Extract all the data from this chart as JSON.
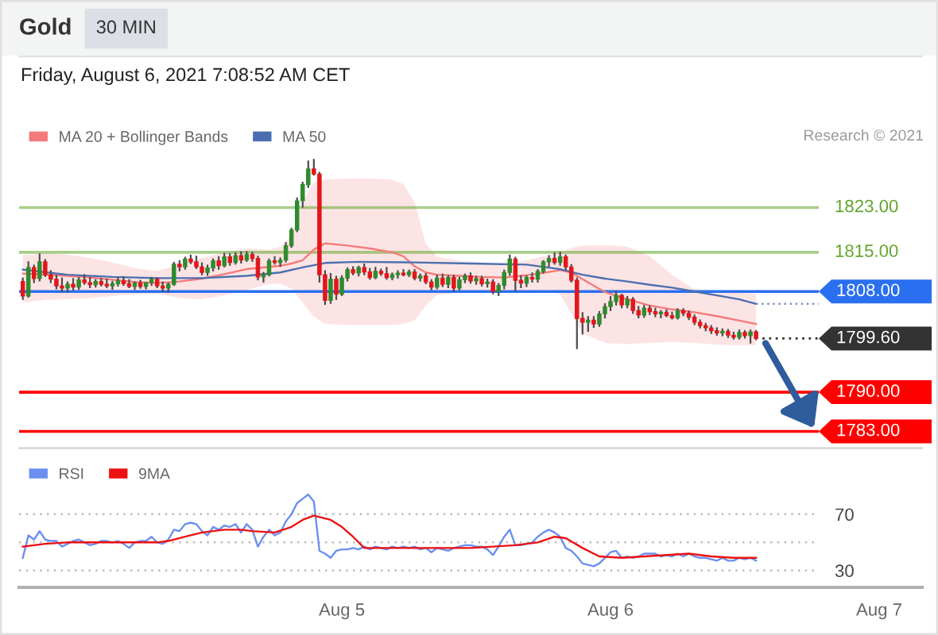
{
  "chart_data": [
    {
      "type": "candlestick",
      "title": "Gold",
      "subtitle": "Friday, August 6, 2021 7:08:52 AM CET",
      "annotations": [
        "30 MIN",
        "Research © 2021"
      ],
      "x": [
        "2021-08-03T19:30",
        "2021-08-03T20:00",
        "2021-08-03T20:30",
        "2021-08-03T21:00",
        "2021-08-03T21:30",
        "2021-08-03T22:00",
        "2021-08-03T22:30",
        "2021-08-03T23:00",
        "2021-08-03T23:30",
        "2021-08-04T00:00",
        "2021-08-04T00:30",
        "2021-08-04T01:00",
        "2021-08-04T01:30",
        "2021-08-04T02:00",
        "2021-08-04T02:30",
        "2021-08-04T03:00",
        "2021-08-04T03:30",
        "2021-08-04T04:00",
        "2021-08-04T04:30",
        "2021-08-04T05:00",
        "2021-08-04T05:30",
        "2021-08-04T06:00",
        "2021-08-04T06:30",
        "2021-08-04T07:00",
        "2021-08-04T07:30",
        "2021-08-04T08:00",
        "2021-08-04T08:30",
        "2021-08-04T09:00",
        "2021-08-04T09:30",
        "2021-08-04T10:00",
        "2021-08-04T10:30",
        "2021-08-04T11:00",
        "2021-08-04T11:30",
        "2021-08-04T12:00",
        "2021-08-04T12:30",
        "2021-08-04T13:00",
        "2021-08-04T13:30",
        "2021-08-04T14:00",
        "2021-08-04T14:30",
        "2021-08-04T15:00",
        "2021-08-04T15:30",
        "2021-08-04T16:00",
        "2021-08-04T16:30",
        "2021-08-04T17:00",
        "2021-08-04T17:30",
        "2021-08-04T18:00",
        "2021-08-04T18:30",
        "2021-08-04T19:00",
        "2021-08-04T19:30",
        "2021-08-04T20:00",
        "2021-08-04T20:30",
        "2021-08-04T21:00",
        "2021-08-04T21:30",
        "2021-08-04T22:00",
        "2021-08-04T22:30",
        "2021-08-04T23:00",
        "2021-08-04T23:30",
        "2021-08-05T00:00",
        "2021-08-05T00:30",
        "2021-08-05T01:00",
        "2021-08-05T01:30",
        "2021-08-05T02:00",
        "2021-08-05T02:30",
        "2021-08-05T03:00",
        "2021-08-05T03:30",
        "2021-08-05T04:00",
        "2021-08-05T04:30",
        "2021-08-05T05:00",
        "2021-08-05T05:30",
        "2021-08-05T06:00",
        "2021-08-05T06:30",
        "2021-08-05T07:00",
        "2021-08-05T07:30",
        "2021-08-05T08:00",
        "2021-08-05T08:30",
        "2021-08-05T09:00",
        "2021-08-05T09:30",
        "2021-08-05T10:00",
        "2021-08-05T10:30",
        "2021-08-05T11:00",
        "2021-08-05T11:30",
        "2021-08-05T12:00",
        "2021-08-05T12:30",
        "2021-08-05T13:00",
        "2021-08-05T13:30",
        "2021-08-05T14:00",
        "2021-08-05T14:30",
        "2021-08-05T15:00",
        "2021-08-05T15:30",
        "2021-08-05T16:00",
        "2021-08-05T16:30",
        "2021-08-05T17:00",
        "2021-08-05T17:30",
        "2021-08-05T18:00",
        "2021-08-05T18:30",
        "2021-08-05T19:00",
        "2021-08-05T19:30",
        "2021-08-05T20:00",
        "2021-08-05T20:30",
        "2021-08-05T21:00",
        "2021-08-05T21:30",
        "2021-08-05T22:00",
        "2021-08-05T22:30",
        "2021-08-05T23:00",
        "2021-08-05T23:30",
        "2021-08-06T00:00",
        "2021-08-06T00:30",
        "2021-08-06T01:00",
        "2021-08-06T01:30",
        "2021-08-06T02:00",
        "2021-08-06T02:30",
        "2021-08-06T03:00",
        "2021-08-06T03:30",
        "2021-08-06T04:00",
        "2021-08-06T04:30",
        "2021-08-06T05:00",
        "2021-08-06T05:30",
        "2021-08-06T06:00",
        "2021-08-06T06:30",
        "2021-08-06T07:00",
        "2021-08-06T07:30",
        "2021-08-06T08:00",
        "2021-08-06T08:30",
        "2021-08-06T09:00",
        "2021-08-06T09:30",
        "2021-08-06T10:00",
        "2021-08-06T10:30",
        "2021-08-06T11:00",
        "2021-08-06T11:30",
        "2021-08-06T12:00",
        "2021-08-06T12:30",
        "2021-08-06T13:00"
      ],
      "ohlc": [
        [
          1809.8,
          1810.5,
          1806.5,
          1807.2
        ],
        [
          1807.2,
          1813.4,
          1806.9,
          1812.3
        ],
        [
          1812.3,
          1812.8,
          1809.5,
          1810.3
        ],
        [
          1810.3,
          1814.8,
          1809.8,
          1813.3
        ],
        [
          1813.3,
          1813.8,
          1810.6,
          1811.0
        ],
        [
          1811.0,
          1811.8,
          1809.5,
          1810.2
        ],
        [
          1810.2,
          1811.0,
          1808.4,
          1809.0
        ],
        [
          1809.0,
          1810.5,
          1807.9,
          1808.6
        ],
        [
          1808.6,
          1809.8,
          1807.8,
          1809.3
        ],
        [
          1809.3,
          1810.4,
          1808.2,
          1808.8
        ],
        [
          1808.8,
          1810.6,
          1808.3,
          1810.1
        ],
        [
          1810.1,
          1811.1,
          1809.2,
          1809.6
        ],
        [
          1809.6,
          1810.6,
          1808.6,
          1809.2
        ],
        [
          1809.2,
          1810.2,
          1808.7,
          1809.8
        ],
        [
          1809.8,
          1810.4,
          1808.9,
          1809.3
        ],
        [
          1809.3,
          1810.3,
          1808.6,
          1809.0
        ],
        [
          1809.0,
          1809.9,
          1808.3,
          1809.4
        ],
        [
          1809.4,
          1810.5,
          1808.9,
          1809.9
        ],
        [
          1809.9,
          1810.7,
          1809.0,
          1809.4
        ],
        [
          1809.4,
          1810.2,
          1808.6,
          1808.9
        ],
        [
          1808.9,
          1809.8,
          1808.3,
          1809.5
        ],
        [
          1809.5,
          1810.1,
          1808.5,
          1808.9
        ],
        [
          1808.9,
          1809.7,
          1808.4,
          1809.6
        ],
        [
          1809.6,
          1810.6,
          1809.0,
          1810.2
        ],
        [
          1810.2,
          1810.5,
          1808.6,
          1809.0
        ],
        [
          1809.0,
          1809.8,
          1807.9,
          1808.6
        ],
        [
          1808.6,
          1809.6,
          1807.8,
          1809.3
        ],
        [
          1809.3,
          1813.3,
          1809.0,
          1812.9
        ],
        [
          1812.9,
          1813.6,
          1811.6,
          1812.4
        ],
        [
          1812.4,
          1814.2,
          1811.9,
          1813.8
        ],
        [
          1813.8,
          1814.6,
          1812.9,
          1813.3
        ],
        [
          1813.3,
          1814.4,
          1812.0,
          1812.4
        ],
        [
          1812.4,
          1813.2,
          1810.9,
          1811.4
        ],
        [
          1811.4,
          1812.8,
          1810.8,
          1812.2
        ],
        [
          1812.2,
          1813.9,
          1811.6,
          1813.5
        ],
        [
          1813.5,
          1814.3,
          1811.9,
          1812.6
        ],
        [
          1812.6,
          1814.9,
          1812.3,
          1814.2
        ],
        [
          1814.2,
          1814.8,
          1812.6,
          1813.2
        ],
        [
          1813.2,
          1815.0,
          1812.8,
          1814.4
        ],
        [
          1814.4,
          1815.2,
          1813.0,
          1813.6
        ],
        [
          1813.6,
          1815.2,
          1813.3,
          1814.6
        ],
        [
          1814.6,
          1815.1,
          1813.3,
          1813.9
        ],
        [
          1813.9,
          1814.4,
          1810.0,
          1810.6
        ],
        [
          1810.6,
          1811.5,
          1809.6,
          1811.0
        ],
        [
          1811.0,
          1813.9,
          1810.7,
          1813.5
        ],
        [
          1813.5,
          1814.3,
          1812.8,
          1813.2
        ],
        [
          1813.2,
          1814.1,
          1812.4,
          1813.6
        ],
        [
          1813.6,
          1816.8,
          1813.2,
          1816.2
        ],
        [
          1816.2,
          1819.4,
          1815.8,
          1819.0
        ],
        [
          1819.0,
          1824.8,
          1818.6,
          1824.2
        ],
        [
          1824.2,
          1827.6,
          1823.0,
          1827.1
        ],
        [
          1827.1,
          1831.4,
          1826.5,
          1829.9
        ],
        [
          1829.9,
          1831.7,
          1828.7,
          1829.0
        ],
        [
          1829.0,
          1829.4,
          1809.6,
          1811.0
        ],
        [
          1811.0,
          1811.8,
          1805.6,
          1806.4
        ],
        [
          1806.4,
          1811.3,
          1805.8,
          1810.2
        ],
        [
          1810.2,
          1810.8,
          1806.5,
          1807.5
        ],
        [
          1807.5,
          1810.9,
          1807.2,
          1810.4
        ],
        [
          1810.4,
          1812.3,
          1809.8,
          1811.9
        ],
        [
          1811.9,
          1812.5,
          1810.9,
          1811.3
        ],
        [
          1811.3,
          1812.6,
          1810.7,
          1812.3
        ],
        [
          1812.3,
          1813.0,
          1810.9,
          1811.5
        ],
        [
          1811.5,
          1812.2,
          1810.1,
          1810.5
        ],
        [
          1810.5,
          1812.4,
          1810.2,
          1811.6
        ],
        [
          1811.6,
          1812.1,
          1810.8,
          1811.2
        ],
        [
          1811.2,
          1812.4,
          1810.1,
          1810.5
        ],
        [
          1810.5,
          1811.4,
          1810.0,
          1811.0
        ],
        [
          1811.0,
          1811.8,
          1810.3,
          1811.3
        ],
        [
          1811.3,
          1812.0,
          1810.7,
          1811.0
        ],
        [
          1811.0,
          1811.9,
          1810.6,
          1811.5
        ],
        [
          1811.5,
          1812.0,
          1810.0,
          1810.4
        ],
        [
          1810.4,
          1811.2,
          1809.8,
          1810.8
        ],
        [
          1810.8,
          1811.3,
          1809.3,
          1809.7
        ],
        [
          1809.7,
          1810.2,
          1808.2,
          1808.8
        ],
        [
          1808.8,
          1811.0,
          1808.4,
          1810.4
        ],
        [
          1810.4,
          1811.2,
          1808.8,
          1809.3
        ],
        [
          1809.3,
          1810.9,
          1808.6,
          1810.5
        ],
        [
          1810.5,
          1811.0,
          1808.0,
          1808.6
        ],
        [
          1808.6,
          1810.6,
          1808.2,
          1810.1
        ],
        [
          1810.1,
          1811.2,
          1809.5,
          1810.8
        ],
        [
          1810.8,
          1811.4,
          1809.4,
          1809.9
        ],
        [
          1809.9,
          1810.8,
          1809.2,
          1810.3
        ],
        [
          1810.3,
          1810.8,
          1808.9,
          1809.4
        ],
        [
          1809.4,
          1810.3,
          1808.7,
          1809.7
        ],
        [
          1809.7,
          1810.2,
          1807.5,
          1808.0
        ],
        [
          1808.0,
          1809.5,
          1807.2,
          1809.1
        ],
        [
          1809.1,
          1811.9,
          1808.4,
          1811.4
        ],
        [
          1811.4,
          1814.6,
          1810.8,
          1813.8
        ],
        [
          1813.8,
          1814.2,
          1808.0,
          1810.0
        ],
        [
          1810.0,
          1810.9,
          1808.6,
          1809.5
        ],
        [
          1809.5,
          1810.9,
          1808.8,
          1810.5
        ],
        [
          1810.5,
          1811.4,
          1809.6,
          1810.2
        ],
        [
          1810.2,
          1812.0,
          1809.6,
          1811.6
        ],
        [
          1811.6,
          1813.6,
          1811.2,
          1813.3
        ],
        [
          1813.3,
          1814.5,
          1812.4,
          1813.9
        ],
        [
          1813.9,
          1815.0,
          1812.8,
          1813.2
        ],
        [
          1813.2,
          1815.1,
          1812.6,
          1814.2
        ],
        [
          1814.2,
          1814.6,
          1811.8,
          1812.4
        ],
        [
          1812.4,
          1812.9,
          1809.6,
          1810.0
        ],
        [
          1810.0,
          1810.5,
          1797.7,
          1803.2
        ],
        [
          1803.2,
          1804.3,
          1800.3,
          1802.5
        ],
        [
          1802.5,
          1803.6,
          1800.8,
          1802.9
        ],
        [
          1802.9,
          1803.6,
          1801.5,
          1802.2
        ],
        [
          1802.2,
          1804.5,
          1801.7,
          1804.0
        ],
        [
          1804.0,
          1805.9,
          1803.2,
          1805.3
        ],
        [
          1805.3,
          1807.2,
          1804.5,
          1806.2
        ],
        [
          1806.2,
          1808.1,
          1805.5,
          1807.3
        ],
        [
          1807.3,
          1807.6,
          1805.0,
          1805.6
        ],
        [
          1805.6,
          1807.2,
          1805.0,
          1806.6
        ],
        [
          1806.6,
          1807.0,
          1804.0,
          1804.6
        ],
        [
          1804.6,
          1805.4,
          1803.2,
          1803.8
        ],
        [
          1803.8,
          1805.6,
          1803.3,
          1805.0
        ],
        [
          1805.0,
          1805.5,
          1803.8,
          1804.4
        ],
        [
          1804.4,
          1805.1,
          1803.4,
          1804.0
        ],
        [
          1804.0,
          1804.7,
          1803.2,
          1804.3
        ],
        [
          1804.3,
          1804.8,
          1803.4,
          1803.7
        ],
        [
          1803.7,
          1804.4,
          1803.0,
          1803.3
        ],
        [
          1803.3,
          1805.0,
          1803.0,
          1804.6
        ],
        [
          1804.6,
          1805.0,
          1803.6,
          1804.1
        ],
        [
          1804.1,
          1804.6,
          1802.9,
          1803.4
        ],
        [
          1803.4,
          1803.9,
          1802.0,
          1802.5
        ],
        [
          1802.5,
          1803.0,
          1801.4,
          1801.9
        ],
        [
          1801.9,
          1802.4,
          1800.9,
          1801.5
        ],
        [
          1801.5,
          1802.0,
          1800.4,
          1801.0
        ],
        [
          1801.0,
          1801.6,
          1800.1,
          1800.6
        ],
        [
          1800.6,
          1801.4,
          1800.0,
          1800.9
        ],
        [
          1800.9,
          1801.3,
          1799.7,
          1800.2
        ],
        [
          1800.2,
          1800.8,
          1799.4,
          1799.8
        ],
        [
          1799.8,
          1801.2,
          1799.4,
          1800.7
        ],
        [
          1800.7,
          1801.1,
          1799.6,
          1800.1
        ],
        [
          1800.1,
          1801.2,
          1798.7,
          1800.8
        ],
        [
          1800.8,
          1801.1,
          1799.3,
          1799.6
        ]
      ],
      "colors": [
        "#e3161c",
        "#2e8b2e",
        "#e3161c",
        "#2e8b2e",
        "#e3161c",
        "#e3161c",
        "#e3161c",
        "#e3161c",
        "#2e8b2e",
        "#e3161c",
        "#2e8b2e",
        "#e3161c",
        "#e3161c",
        "#2e8b2e",
        "#e3161c",
        "#e3161c",
        "#2e8b2e",
        "#2e8b2e",
        "#e3161c",
        "#e3161c",
        "#2e8b2e",
        "#e3161c",
        "#2e8b2e",
        "#2e8b2e",
        "#e3161c",
        "#e3161c",
        "#2e8b2e",
        "#2e8b2e",
        "#e3161c",
        "#2e8b2e",
        "#e3161c",
        "#e3161c",
        "#e3161c",
        "#2e8b2e",
        "#2e8b2e",
        "#e3161c",
        "#2e8b2e",
        "#e3161c",
        "#2e8b2e",
        "#e3161c",
        "#2e8b2e",
        "#e3161c",
        "#e3161c",
        "#2e8b2e",
        "#2e8b2e",
        "#e3161c",
        "#2e8b2e",
        "#2e8b2e",
        "#2e8b2e",
        "#2e8b2e",
        "#2e8b2e",
        "#2e8b2e",
        "#e3161c",
        "#e3161c",
        "#e3161c",
        "#2e8b2e",
        "#e3161c",
        "#2e8b2e",
        "#2e8b2e",
        "#e3161c",
        "#2e8b2e",
        "#e3161c",
        "#e3161c",
        "#2e8b2e",
        "#e3161c",
        "#e3161c",
        "#2e8b2e",
        "#2e8b2e",
        "#e3161c",
        "#2e8b2e",
        "#e3161c",
        "#2e8b2e",
        "#e3161c",
        "#e3161c",
        "#2e8b2e",
        "#e3161c",
        "#2e8b2e",
        "#e3161c",
        "#2e8b2e",
        "#2e8b2e",
        "#e3161c",
        "#2e8b2e",
        "#e3161c",
        "#2e8b2e",
        "#e3161c",
        "#2e8b2e",
        "#2e8b2e",
        "#2e8b2e",
        "#e3161c",
        "#e3161c",
        "#2e8b2e",
        "#e3161c",
        "#2e8b2e",
        "#2e8b2e",
        "#2e8b2e",
        "#e3161c",
        "#2e8b2e",
        "#e3161c",
        "#e3161c",
        "#e3161c",
        "#e3161c",
        "#2e8b2e",
        "#e3161c",
        "#2e8b2e",
        "#2e8b2e",
        "#2e8b2e",
        "#2e8b2e",
        "#e3161c",
        "#2e8b2e",
        "#e3161c",
        "#e3161c",
        "#2e8b2e",
        "#e3161c",
        "#e3161c",
        "#2e8b2e",
        "#e3161c",
        "#e3161c",
        "#2e8b2e",
        "#e3161c",
        "#e3161c",
        "#e3161c",
        "#e3161c",
        "#e3161c",
        "#e3161c",
        "#e3161c",
        "#2e8b2e",
        "#e3161c",
        "#e3161c",
        "#2e8b2e",
        "#e3161c",
        "#2e8b2e",
        "#e3161c"
      ],
      "series": [
        {
          "name": "MA 20 + Bollinger Bands",
          "type": "line",
          "color": "#f47a7a",
          "x": [
            "2021-08-03T19:30",
            "2021-08-03T21:30",
            "2021-08-03T23:30",
            "2021-08-04T01:30",
            "2021-08-04T03:30",
            "2021-08-04T05:30",
            "2021-08-04T07:30",
            "2021-08-04T09:30",
            "2021-08-04T11:30",
            "2021-08-04T13:30",
            "2021-08-04T15:30",
            "2021-08-04T17:30",
            "2021-08-04T18:30",
            "2021-08-04T19:30",
            "2021-08-04T20:30",
            "2021-08-04T21:30",
            "2021-08-04T22:30",
            "2021-08-05T00:30",
            "2021-08-05T02:30",
            "2021-08-05T04:30",
            "2021-08-05T05:30",
            "2021-08-05T06:30",
            "2021-08-05T07:30",
            "2021-08-05T08:30",
            "2021-08-05T10:30",
            "2021-08-05T12:30",
            "2021-08-05T14:30",
            "2021-08-05T16:30",
            "2021-08-05T18:30",
            "2021-08-05T19:30",
            "2021-08-05T20:30",
            "2021-08-05T21:30",
            "2021-08-05T23:30",
            "2021-08-06T01:30",
            "2021-08-06T03:30",
            "2021-08-06T05:30",
            "2021-08-06T07:30",
            "2021-08-06T09:30",
            "2021-08-06T11:30",
            "2021-08-06T13:00"
          ],
          "values": [
            1811.2,
            1811.0,
            1810.8,
            1810.5,
            1810.1,
            1809.7,
            1809.5,
            1809.8,
            1810.3,
            1811.1,
            1812.0,
            1812.4,
            1812.6,
            1813.0,
            1813.6,
            1815.5,
            1816.6,
            1816.2,
            1815.7,
            1815.0,
            1814.3,
            1812.5,
            1811.4,
            1811.0,
            1810.8,
            1810.6,
            1810.5,
            1810.9,
            1811.5,
            1811.8,
            1811.4,
            1810.2,
            1807.9,
            1806.6,
            1805.5,
            1804.8,
            1804.3,
            1803.6,
            1802.8,
            1802.2
          ],
          "lower": [
            1806.0,
            1806.5,
            1806.6,
            1806.8,
            1807.2,
            1807.5,
            1807.6,
            1806.8,
            1806.6,
            1807.3,
            1808.3,
            1809.3,
            1809.4,
            1808.5,
            1806.0,
            1803.5,
            1802.2,
            1802.0,
            1802.0,
            1802.0,
            1802.2,
            1802.8,
            1805.5,
            1807.4,
            1807.8,
            1808.0,
            1808.0,
            1808.0,
            1808.3,
            1807.5,
            1804.0,
            1800.5,
            1798.8,
            1798.6,
            1798.8,
            1799.0,
            1798.8,
            1798.5,
            1798.4,
            1798.4
          ],
          "upper": [
            1814.5,
            1814.8,
            1814.6,
            1814.0,
            1813.2,
            1812.2,
            1811.7,
            1812.8,
            1814.0,
            1815.0,
            1815.7,
            1815.5,
            1816.0,
            1818.0,
            1824.0,
            1827.5,
            1828.0,
            1828.2,
            1828.2,
            1828.0,
            1827.2,
            1824.0,
            1816.5,
            1814.2,
            1813.5,
            1813.2,
            1813.0,
            1813.6,
            1814.5,
            1815.0,
            1815.8,
            1816.2,
            1816.3,
            1816.0,
            1814.3,
            1811.0,
            1808.4,
            1808.0,
            1807.8,
            1807.6
          ]
        },
        {
          "name": "MA 50",
          "type": "line",
          "color": "#4a6fb0",
          "x": [
            "2021-08-03T19:30",
            "2021-08-03T23:30",
            "2021-08-04T03:30",
            "2021-08-04T07:30",
            "2021-08-04T11:30",
            "2021-08-04T15:30",
            "2021-08-04T18:30",
            "2021-08-04T20:30",
            "2021-08-04T22:30",
            "2021-08-05T01:30",
            "2021-08-05T06:30",
            "2021-08-05T11:30",
            "2021-08-05T16:30",
            "2021-08-05T19:30",
            "2021-08-05T21:30",
            "2021-08-05T23:30",
            "2021-08-06T01:30",
            "2021-08-06T03:30",
            "2021-08-06T05:30",
            "2021-08-06T07:30",
            "2021-08-06T09:30",
            "2021-08-06T11:30",
            "2021-08-06T13:00"
          ],
          "values": [
            1811.9,
            1811.0,
            1810.6,
            1810.4,
            1810.4,
            1810.8,
            1811.4,
            1812.3,
            1813.1,
            1813.3,
            1813.2,
            1813.0,
            1812.8,
            1812.0,
            1811.0,
            1810.3,
            1809.8,
            1809.2,
            1808.7,
            1808.0,
            1807.3,
            1806.6,
            1805.8
          ]
        },
        {
          "type": "line",
          "color": "#7d90b8",
          "line_style": "dotted",
          "x": [
            "2021-08-06T13:00",
            "2021-08-06T18:35"
          ],
          "values": [
            1805.8,
            1805.8
          ]
        }
      ],
      "xlim": [
        "2021-08-03T19:10",
        "2021-08-07T03:50"
      ],
      "ylim": [
        1780,
        1850
      ],
      "legend": "top left",
      "ref_lines": [
        {
          "axis": "y",
          "value": 1823,
          "label": "1823.00",
          "color": "#5fa52a"
        },
        {
          "axis": "y",
          "value": 1815,
          "label": "1815.00",
          "color": "#5fa52a"
        },
        {
          "axis": "y",
          "value": 1808,
          "label": "1808.00",
          "color": "#2a6ff0"
        },
        {
          "axis": "y",
          "value": 1799.6,
          "label": "1799.60",
          "color": "#333333",
          "line_style": "dotted"
        },
        {
          "axis": "y",
          "value": 1790,
          "label": "1790.00",
          "color": "#ff0000"
        },
        {
          "axis": "y",
          "value": 1783,
          "label": "1783.00",
          "color": "#ff0000"
        }
      ]
    },
    {
      "type": "line",
      "x": [
        "2021-08-03T19:30",
        "2021-08-03T20:00",
        "2021-08-03T20:30",
        "2021-08-03T21:00",
        "2021-08-03T21:30",
        "2021-08-03T22:00",
        "2021-08-03T22:30",
        "2021-08-03T23:00",
        "2021-08-03T23:30",
        "2021-08-04T00:00",
        "2021-08-04T00:30",
        "2021-08-04T01:00",
        "2021-08-04T01:30",
        "2021-08-04T02:00",
        "2021-08-04T02:30",
        "2021-08-04T03:00",
        "2021-08-04T03:30",
        "2021-08-04T04:00",
        "2021-08-04T04:30",
        "2021-08-04T05:00",
        "2021-08-04T05:30",
        "2021-08-04T06:00",
        "2021-08-04T06:30",
        "2021-08-04T07:00",
        "2021-08-04T07:30",
        "2021-08-04T08:00",
        "2021-08-04T08:30",
        "2021-08-04T09:00",
        "2021-08-04T09:30",
        "2021-08-04T10:00",
        "2021-08-04T10:30",
        "2021-08-04T11:00",
        "2021-08-04T11:30",
        "2021-08-04T12:00",
        "2021-08-04T12:30",
        "2021-08-04T13:00",
        "2021-08-04T13:30",
        "2021-08-04T14:00",
        "2021-08-04T14:30",
        "2021-08-04T15:00",
        "2021-08-04T15:30",
        "2021-08-04T16:00",
        "2021-08-04T16:30",
        "2021-08-04T17:00",
        "2021-08-04T17:30",
        "2021-08-04T18:00",
        "2021-08-04T18:30",
        "2021-08-04T19:00",
        "2021-08-04T19:30",
        "2021-08-04T20:00",
        "2021-08-04T20:30",
        "2021-08-04T21:00",
        "2021-08-04T21:30",
        "2021-08-04T22:00",
        "2021-08-04T22:30",
        "2021-08-04T23:00",
        "2021-08-04T23:30",
        "2021-08-05T00:00",
        "2021-08-05T00:30",
        "2021-08-05T01:00",
        "2021-08-05T01:30",
        "2021-08-05T02:00",
        "2021-08-05T02:30",
        "2021-08-05T03:00",
        "2021-08-05T03:30",
        "2021-08-05T04:00",
        "2021-08-05T04:30",
        "2021-08-05T05:00",
        "2021-08-05T05:30",
        "2021-08-05T06:00",
        "2021-08-05T06:30",
        "2021-08-05T07:00",
        "2021-08-05T07:30",
        "2021-08-05T08:00",
        "2021-08-05T08:30",
        "2021-08-05T09:00",
        "2021-08-05T09:30",
        "2021-08-05T10:00",
        "2021-08-05T10:30",
        "2021-08-05T11:00",
        "2021-08-05T11:30",
        "2021-08-05T12:00",
        "2021-08-05T12:30",
        "2021-08-05T13:00",
        "2021-08-05T13:30",
        "2021-08-05T14:00",
        "2021-08-05T14:30",
        "2021-08-05T15:00",
        "2021-08-05T15:30",
        "2021-08-05T16:00",
        "2021-08-05T16:30",
        "2021-08-05T17:00",
        "2021-08-05T17:30",
        "2021-08-05T18:00",
        "2021-08-05T18:30",
        "2021-08-05T19:00",
        "2021-08-05T19:30",
        "2021-08-05T20:00",
        "2021-08-05T20:30",
        "2021-08-05T21:00",
        "2021-08-05T21:30",
        "2021-08-05T22:00",
        "2021-08-05T22:30",
        "2021-08-05T23:00",
        "2021-08-05T23:30",
        "2021-08-06T00:00",
        "2021-08-06T00:30",
        "2021-08-06T01:00",
        "2021-08-06T01:30",
        "2021-08-06T02:00",
        "2021-08-06T02:30",
        "2021-08-06T03:00",
        "2021-08-06T03:30",
        "2021-08-06T04:00",
        "2021-08-06T04:30",
        "2021-08-06T05:00",
        "2021-08-06T05:30",
        "2021-08-06T06:00",
        "2021-08-06T06:30",
        "2021-08-06T07:00",
        "2021-08-06T07:30",
        "2021-08-06T08:00",
        "2021-08-06T08:30",
        "2021-08-06T09:00",
        "2021-08-06T09:30",
        "2021-08-06T10:00",
        "2021-08-06T10:30",
        "2021-08-06T11:00",
        "2021-08-06T11:30",
        "2021-08-06T12:00",
        "2021-08-06T12:30",
        "2021-08-06T13:00"
      ],
      "series": [
        {
          "name": "RSI",
          "color": "#6b8ff0",
          "values": [
            39,
            55,
            52,
            58,
            52,
            51,
            51,
            47,
            49,
            51,
            52,
            50,
            48,
            49,
            51,
            51,
            50,
            51,
            49,
            46,
            50,
            51,
            51,
            54,
            50,
            49,
            52,
            59,
            58,
            63,
            64,
            63,
            58,
            55,
            61,
            59,
            62,
            61,
            63,
            57,
            63,
            59,
            47,
            54,
            59,
            55,
            57,
            65,
            70,
            78,
            81,
            84,
            79,
            44,
            42,
            39,
            44,
            45,
            45,
            46,
            45,
            47,
            45,
            47,
            46,
            45,
            47,
            46,
            47,
            46,
            47,
            45,
            46,
            43,
            46,
            45,
            44,
            46,
            47,
            48,
            48,
            47,
            47,
            45,
            41,
            47,
            54,
            59,
            48,
            48,
            49,
            50,
            54,
            57,
            59,
            57,
            54,
            46,
            44,
            40,
            35,
            34,
            33,
            35,
            39,
            43,
            44,
            39,
            40,
            39,
            40,
            42,
            42,
            42,
            40,
            41,
            40,
            42,
            40,
            42,
            40,
            39,
            39,
            38,
            37,
            39,
            37,
            37,
            39,
            38,
            39,
            37
          ]
        },
        {
          "name": "9MA",
          "color": "#ee1111",
          "x": [
            "2021-08-03T19:30",
            "2021-08-03T21:30",
            "2021-08-03T23:30",
            "2021-08-04T01:30",
            "2021-08-04T03:30",
            "2021-08-04T05:30",
            "2021-08-04T07:30",
            "2021-08-04T08:30",
            "2021-08-04T10:00",
            "2021-08-04T11:30",
            "2021-08-04T13:30",
            "2021-08-04T15:00",
            "2021-08-04T16:00",
            "2021-08-04T18:00",
            "2021-08-04T19:30",
            "2021-08-04T20:30",
            "2021-08-04T21:30",
            "2021-08-04T23:00",
            "2021-08-05T00:00",
            "2021-08-05T01:00",
            "2021-08-05T02:00",
            "2021-08-05T04:00",
            "2021-08-05T06:30",
            "2021-08-05T09:00",
            "2021-08-05T11:30",
            "2021-08-05T13:30",
            "2021-08-05T15:30",
            "2021-08-05T17:30",
            "2021-08-05T19:00",
            "2021-08-05T20:00",
            "2021-08-05T21:30",
            "2021-08-05T23:00",
            "2021-08-06T01:00",
            "2021-08-06T03:00",
            "2021-08-06T05:00",
            "2021-08-06T07:00",
            "2021-08-06T09:00",
            "2021-08-06T11:00",
            "2021-08-06T13:00"
          ],
          "values": [
            47,
            49,
            50,
            50,
            50,
            50,
            50,
            51,
            54,
            57,
            59,
            59,
            58,
            57,
            61,
            66,
            69,
            66,
            61,
            54,
            46,
            46,
            46,
            46,
            46,
            47,
            48,
            50,
            54,
            53,
            46,
            40,
            39,
            40,
            41,
            42,
            40,
            39,
            39
          ]
        }
      ],
      "xlim": [
        "2021-08-03T19:10",
        "2021-08-07T03:50"
      ],
      "xticks": [
        {
          "value": "2021-08-05",
          "label": "Aug 5"
        },
        {
          "value": "2021-08-06",
          "label": "Aug 6"
        },
        {
          "value": "2021-08-07",
          "label": "Aug 7"
        }
      ],
      "ylim": [
        18,
        117
      ],
      "yticks": [
        30,
        {
          "value": 50,
          "label": null
        },
        70
      ],
      "grid": "y",
      "legend": "top left"
    }
  ]
}
